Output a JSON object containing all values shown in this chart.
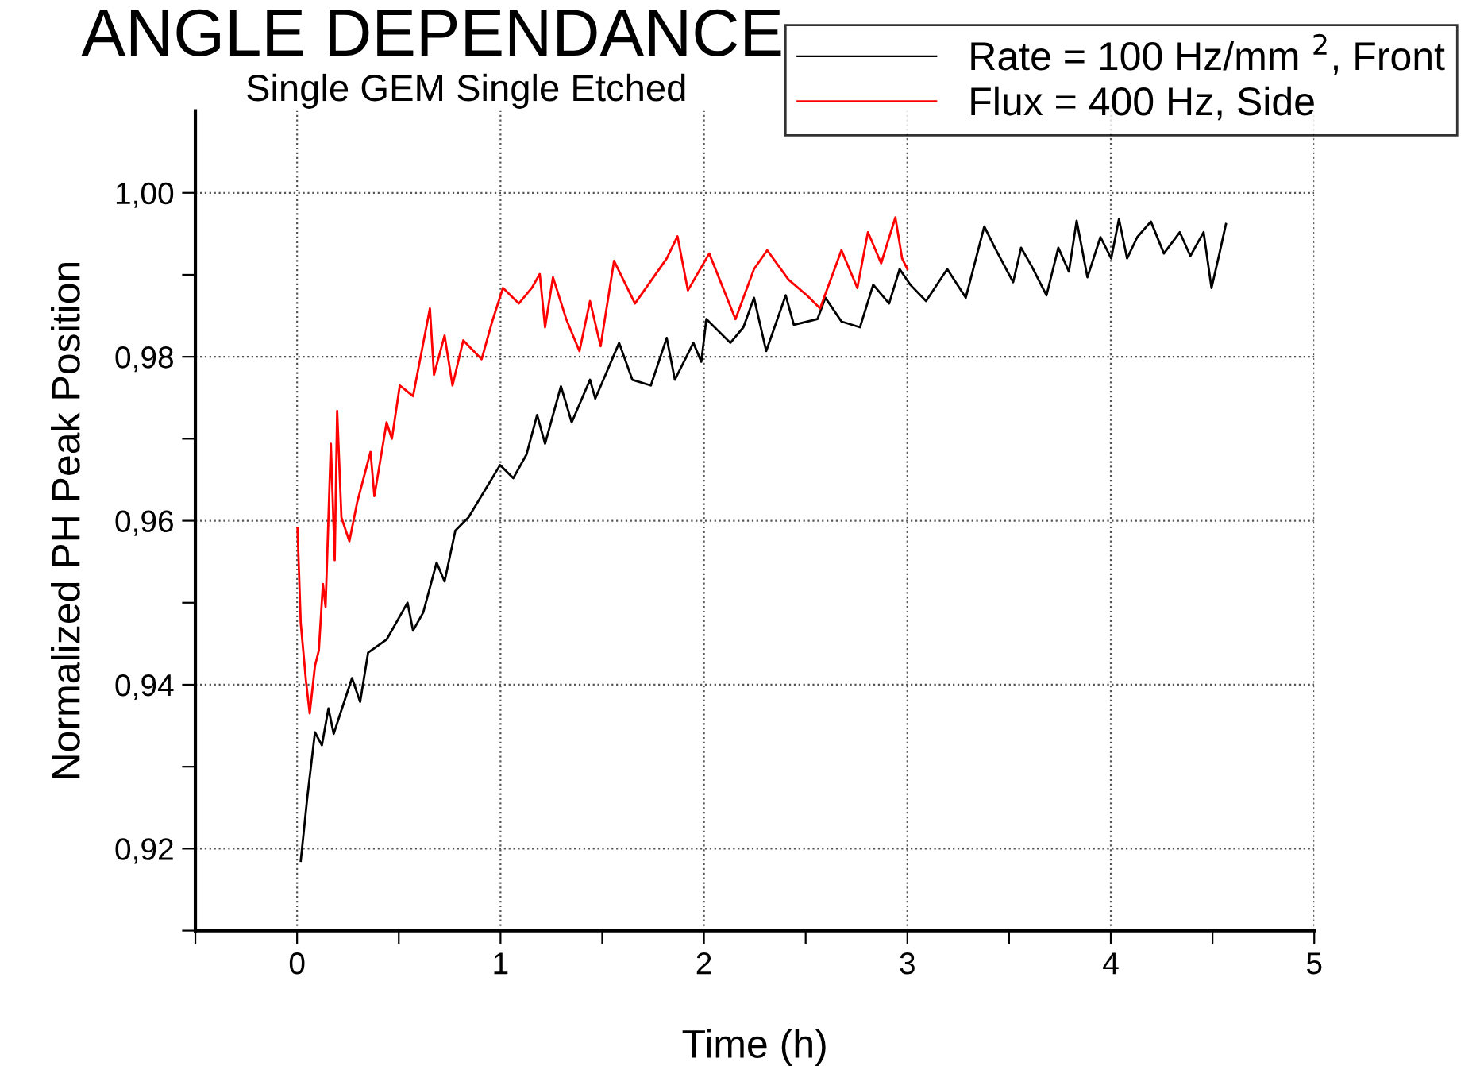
{
  "chart_data": {
    "type": "line",
    "title": "ANGLE DEPENDANCE",
    "subtitle": "Single GEM Single Etched",
    "xlabel": "Time (h)",
    "ylabel": "Normalized PH Peak Position",
    "xlim": [
      -0.5,
      5
    ],
    "ylim": [
      0.91,
      1.01
    ],
    "xticks": [
      {
        "value": -0.5,
        "label": null
      },
      0,
      {
        "value": 0.5,
        "label": null
      },
      1,
      {
        "value": 1.5,
        "label": null
      },
      2,
      {
        "value": 2.5,
        "label": null
      },
      3,
      {
        "value": 3.5,
        "label": null
      },
      4,
      {
        "value": 4.5,
        "label": null
      },
      5
    ],
    "yticks": [
      {
        "value": 0.91,
        "label": null
      },
      {
        "value": 0.92,
        "label": "0,92"
      },
      {
        "value": 0.93,
        "label": null
      },
      {
        "value": 0.94,
        "label": "0,94"
      },
      {
        "value": 0.95,
        "label": null
      },
      {
        "value": 0.96,
        "label": "0,96"
      },
      {
        "value": 0.97,
        "label": null
      },
      {
        "value": 0.98,
        "label": "0,98"
      },
      {
        "value": 0.99,
        "label": null
      },
      {
        "value": 1.0,
        "label": "1,00"
      }
    ],
    "grid": true,
    "legend": "top right",
    "marker": "none",
    "line_style": "solid",
    "series": [
      {
        "name": "Rate = 100 Hz/mm $^{2}$, Front",
        "color": "#000000",
        "x": [
          0.018,
          0.05,
          0.088,
          0.122,
          0.154,
          0.18,
          0.218,
          0.27,
          0.31,
          0.349,
          0.44,
          0.543,
          0.57,
          0.62,
          0.686,
          0.725,
          0.778,
          0.842,
          0.92,
          0.998,
          1.063,
          1.128,
          1.18,
          1.219,
          1.297,
          1.35,
          1.44,
          1.466,
          1.583,
          1.648,
          1.739,
          1.817,
          1.857,
          1.948,
          1.987,
          2.012,
          2.13,
          2.194,
          2.246,
          2.306,
          2.402,
          2.442,
          2.558,
          2.597,
          2.676,
          2.767,
          2.832,
          2.91,
          2.962,
          3.014,
          3.092,
          3.196,
          3.287,
          3.378,
          3.43,
          3.52,
          3.559,
          3.612,
          3.684,
          3.742,
          3.794,
          3.832,
          3.885,
          3.949,
          4.002,
          4.04,
          4.08,
          4.13,
          4.197,
          4.261,
          4.339,
          4.391,
          4.456,
          4.495,
          4.534,
          4.566
        ],
        "values": [
          0.9185,
          0.9262,
          0.9342,
          0.9326,
          0.9371,
          0.934,
          0.9369,
          0.9408,
          0.9379,
          0.9439,
          0.9455,
          0.95,
          0.9466,
          0.9488,
          0.9549,
          0.9526,
          0.9588,
          0.9604,
          0.9636,
          0.9668,
          0.9652,
          0.9681,
          0.9729,
          0.9694,
          0.9764,
          0.972,
          0.9772,
          0.9749,
          0.9817,
          0.9772,
          0.9765,
          0.9823,
          0.9772,
          0.9817,
          0.9794,
          0.9846,
          0.9817,
          0.9836,
          0.9872,
          0.9807,
          0.9875,
          0.9839,
          0.9846,
          0.9872,
          0.9843,
          0.9836,
          0.9888,
          0.9865,
          0.9907,
          0.9888,
          0.9868,
          0.9907,
          0.9872,
          0.9959,
          0.9933,
          0.9891,
          0.9933,
          0.991,
          0.9875,
          0.9933,
          0.9904,
          0.9966,
          0.9897,
          0.9946,
          0.992,
          0.9968,
          0.992,
          0.9946,
          0.9965,
          0.9926,
          0.9952,
          0.9923,
          0.9952,
          0.9884,
          0.9926,
          0.9962
        ]
      },
      {
        "name": "Flux = 400 Hz, Side",
        "color": "#ff0000",
        "x": [
          0.002,
          0.018,
          0.044,
          0.062,
          0.088,
          0.107,
          0.127,
          0.14,
          0.166,
          0.185,
          0.197,
          0.218,
          0.257,
          0.296,
          0.361,
          0.38,
          0.44,
          0.466,
          0.505,
          0.57,
          0.653,
          0.673,
          0.725,
          0.764,
          0.817,
          0.907,
          0.959,
          1.012,
          1.09,
          1.154,
          1.193,
          1.219,
          1.258,
          1.323,
          1.388,
          1.44,
          1.492,
          1.558,
          1.661,
          1.817,
          1.87,
          1.921,
          2.026,
          2.155,
          2.246,
          2.311,
          2.416,
          2.506,
          2.571,
          2.676,
          2.754,
          2.806,
          2.871,
          2.941,
          2.974,
          3.0
        ],
        "values": [
          0.9591,
          0.9475,
          0.9404,
          0.9365,
          0.9423,
          0.9442,
          0.9523,
          0.9495,
          0.9694,
          0.9552,
          0.9734,
          0.9604,
          0.9575,
          0.9623,
          0.9684,
          0.963,
          0.972,
          0.97,
          0.9765,
          0.9752,
          0.9859,
          0.9778,
          0.9826,
          0.9765,
          0.982,
          0.9797,
          0.9843,
          0.9884,
          0.9865,
          0.9884,
          0.9901,
          0.9836,
          0.9897,
          0.9846,
          0.9807,
          0.9868,
          0.9813,
          0.9917,
          0.9865,
          0.992,
          0.9947,
          0.9881,
          0.9926,
          0.9846,
          0.9907,
          0.993,
          0.9894,
          0.9875,
          0.9859,
          0.993,
          0.9884,
          0.9952,
          0.9914,
          0.997,
          0.992,
          0.9907
        ]
      }
    ]
  }
}
